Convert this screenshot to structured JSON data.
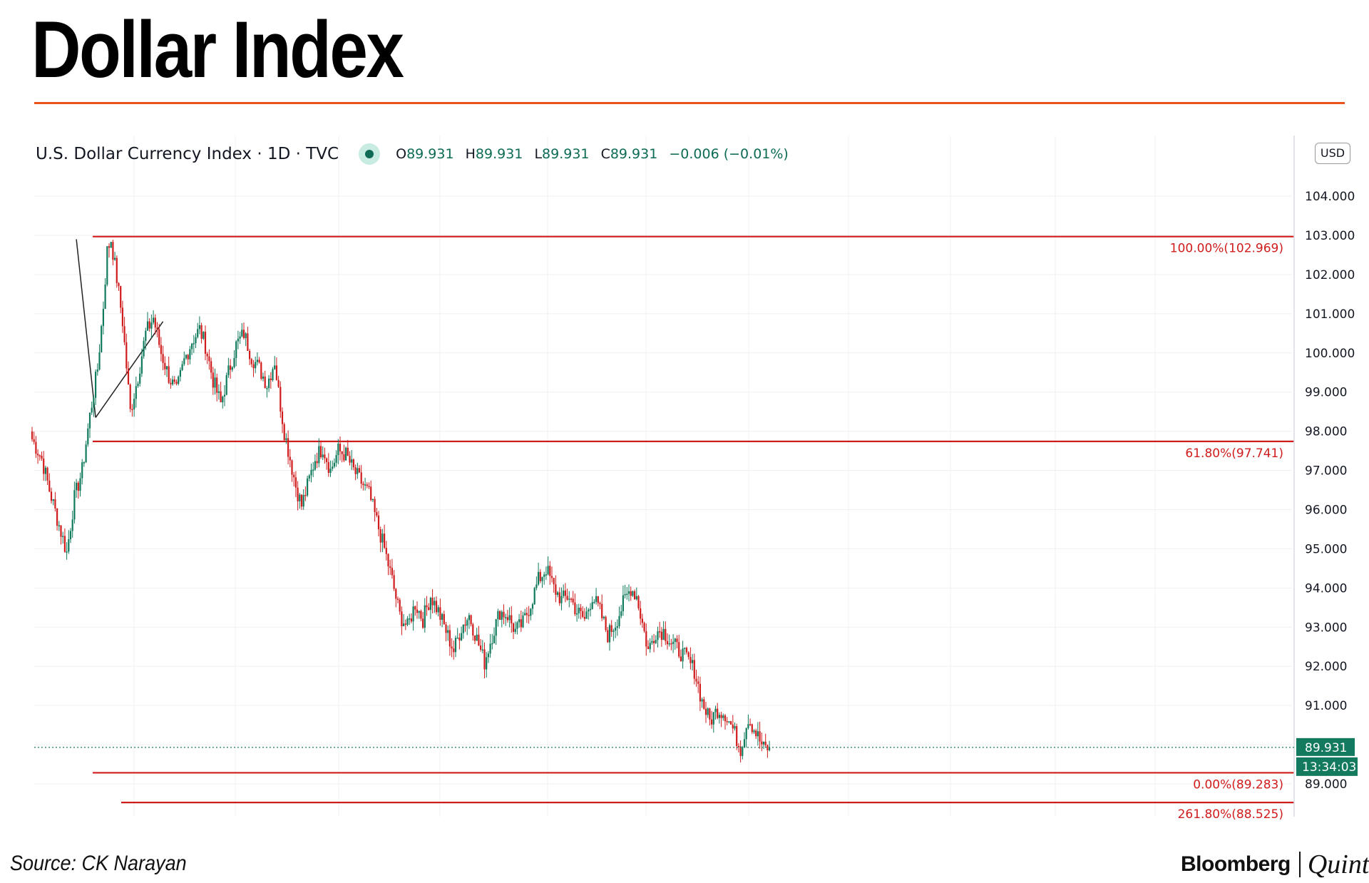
{
  "headline": "Dollar Index",
  "chart_header": {
    "symbol": "U.S. Dollar Currency Index · 1D · TVC",
    "o_label": "O",
    "o_value": "89.931",
    "h_label": "H",
    "h_value": "89.931",
    "l_label": "L",
    "l_value": "89.931",
    "c_label": "C",
    "c_value": "89.931",
    "change": "−0.006 (−0.01%)"
  },
  "currency_button": "USD",
  "source": "Source: CK Narayan",
  "brand": {
    "bloomberg": "Bloomberg",
    "quint": "Quint"
  },
  "colors": {
    "up": "#0f7a5c",
    "down": "#d01c1c",
    "fib": "#d01c1c",
    "accent_rule": "#e8531d",
    "price_tag": "#137a5f"
  },
  "chart_data": {
    "type": "candlestick",
    "title": "U.S. Dollar Currency Index · 1D · TVC",
    "y_axis": {
      "ticks": [
        89,
        90,
        91,
        92,
        93,
        94,
        95,
        96,
        97,
        98,
        99,
        100,
        101,
        102,
        103,
        104
      ],
      "labels": [
        "89.000",
        "90.000",
        "91.000",
        "92.000",
        "93.000",
        "94.000",
        "95.000",
        "96.000",
        "97.000",
        "98.000",
        "99.000",
        "100.000",
        "101.000",
        "102.000",
        "103.000",
        "104.000"
      ],
      "ylim": [
        88.2,
        105.4
      ]
    },
    "grid": true,
    "fib_levels": [
      {
        "label": "100.00%(102.969)",
        "value": 102.969
      },
      {
        "label": "61.80%(97.741)",
        "value": 97.741
      },
      {
        "label": "0.00%(89.283)",
        "value": 89.283
      },
      {
        "label": "261.80%(88.525)",
        "value": 88.525
      }
    ],
    "current_price": {
      "label": "89.931",
      "value": 89.931
    },
    "countdown": "13:34:03",
    "close_path": [
      [
        0,
        97.8
      ],
      [
        5,
        97.3
      ],
      [
        9,
        96.5
      ],
      [
        14,
        95.6
      ],
      [
        18,
        94.9
      ],
      [
        22,
        96.3
      ],
      [
        26,
        97.0
      ],
      [
        30,
        98.4
      ],
      [
        34,
        99.6
      ],
      [
        37,
        101.2
      ],
      [
        39,
        102.6
      ],
      [
        41,
        102.9
      ],
      [
        44,
        101.9
      ],
      [
        47,
        100.8
      ],
      [
        51,
        98.5
      ],
      [
        55,
        99.4
      ],
      [
        59,
        100.5
      ],
      [
        63,
        100.9
      ],
      [
        67,
        100.0
      ],
      [
        71,
        99.4
      ],
      [
        75,
        99.0
      ],
      [
        79,
        99.8
      ],
      [
        83,
        100.3
      ],
      [
        87,
        100.6
      ],
      [
        90,
        100.2
      ],
      [
        94,
        99.3
      ],
      [
        98,
        98.7
      ],
      [
        102,
        99.5
      ],
      [
        106,
        100.2
      ],
      [
        110,
        100.5
      ],
      [
        114,
        99.9
      ],
      [
        118,
        99.6
      ],
      [
        122,
        99.2
      ],
      [
        126,
        99.8
      ],
      [
        128,
        99.0
      ],
      [
        131,
        98.0
      ],
      [
        134,
        97.3
      ],
      [
        137,
        96.6
      ],
      [
        140,
        96.1
      ],
      [
        143,
        96.6
      ],
      [
        147,
        97.3
      ],
      [
        151,
        97.6
      ],
      [
        155,
        97.0
      ],
      [
        159,
        97.5
      ],
      [
        163,
        97.4
      ],
      [
        167,
        97.0
      ],
      [
        171,
        96.7
      ],
      [
        175,
        96.4
      ],
      [
        179,
        95.7
      ],
      [
        183,
        95.0
      ],
      [
        187,
        94.2
      ],
      [
        191,
        93.3
      ],
      [
        195,
        93.0
      ],
      [
        199,
        93.6
      ],
      [
        203,
        93.2
      ],
      [
        207,
        93.8
      ],
      [
        211,
        93.4
      ],
      [
        215,
        92.9
      ],
      [
        219,
        92.4
      ],
      [
        223,
        93.0
      ],
      [
        227,
        93.3
      ],
      [
        231,
        92.7
      ],
      [
        235,
        92.1
      ],
      [
        239,
        92.8
      ],
      [
        243,
        93.4
      ],
      [
        247,
        93.3
      ],
      [
        251,
        92.9
      ],
      [
        255,
        93.1
      ],
      [
        259,
        93.6
      ],
      [
        263,
        94.2
      ],
      [
        267,
        94.5
      ],
      [
        271,
        94.0
      ],
      [
        275,
        93.7
      ],
      [
        279,
        93.8
      ],
      [
        283,
        93.4
      ],
      [
        287,
        93.2
      ],
      [
        291,
        93.8
      ],
      [
        295,
        93.4
      ],
      [
        299,
        92.8
      ],
      [
        303,
        93.1
      ],
      [
        307,
        93.6
      ],
      [
        311,
        94.0
      ],
      [
        314,
        93.8
      ],
      [
        317,
        93.1
      ],
      [
        320,
        92.4
      ],
      [
        324,
        92.9
      ],
      [
        328,
        92.9
      ],
      [
        332,
        92.6
      ],
      [
        336,
        92.4
      ],
      [
        340,
        92.2
      ],
      [
        344,
        91.9
      ],
      [
        348,
        91.1
      ],
      [
        352,
        90.6
      ],
      [
        356,
        90.9
      ],
      [
        360,
        90.8
      ],
      [
        364,
        90.4
      ],
      [
        368,
        89.9
      ],
      [
        372,
        90.7
      ],
      [
        376,
        90.3
      ],
      [
        380,
        89.9
      ],
      [
        383,
        89.93
      ]
    ],
    "x_range": [
      0,
      383
    ],
    "trendlines": [
      {
        "from": [
          23,
          102.9
        ],
        "to": [
          33,
          98.35
        ]
      },
      {
        "from": [
          33,
          98.35
        ],
        "to": [
          68,
          100.8
        ]
      }
    ]
  }
}
